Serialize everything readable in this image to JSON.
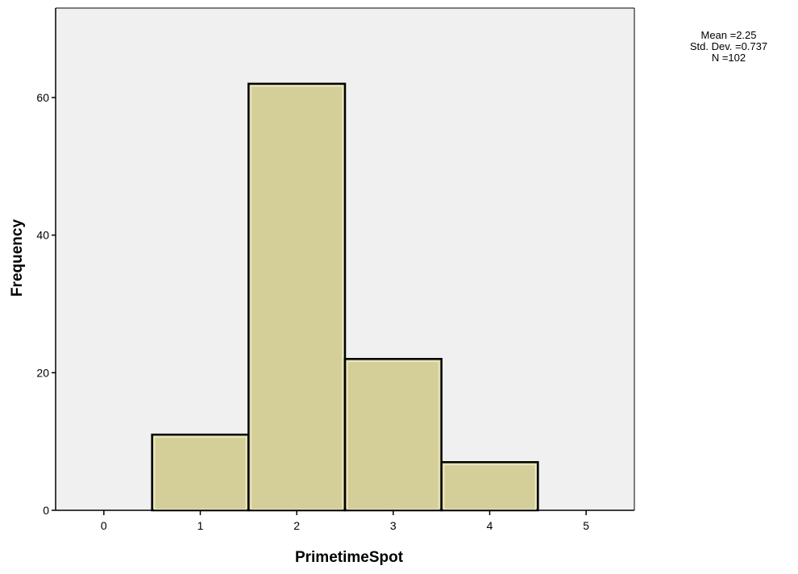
{
  "chart_data": {
    "type": "bar",
    "subtype": "histogram",
    "xlabel": "PrimetimeSpot",
    "ylabel": "Frequency",
    "xlim": [
      -0.5,
      5.5
    ],
    "ylim": [
      0,
      73
    ],
    "x_ticks": [
      0,
      1,
      2,
      3,
      4,
      5
    ],
    "y_ticks": [
      0,
      20,
      40,
      60
    ],
    "bin_width": 1,
    "bins": [
      {
        "center": 1,
        "value": 11
      },
      {
        "center": 2,
        "value": 62
      },
      {
        "center": 3,
        "value": 22
      },
      {
        "center": 4,
        "value": 7
      }
    ],
    "grid": false,
    "stats": {
      "mean_label": "Mean =2.25",
      "sd_label": "Std. Dev. =0.737",
      "n_label": "N =102"
    },
    "colors": {
      "plot_background": "#f0f0f0",
      "bar_fill": "#d4cf99",
      "bar_inner_highlight": "#ece9c8",
      "bar_outline": "#000000",
      "axis": "#000000",
      "text": "#000000"
    }
  }
}
